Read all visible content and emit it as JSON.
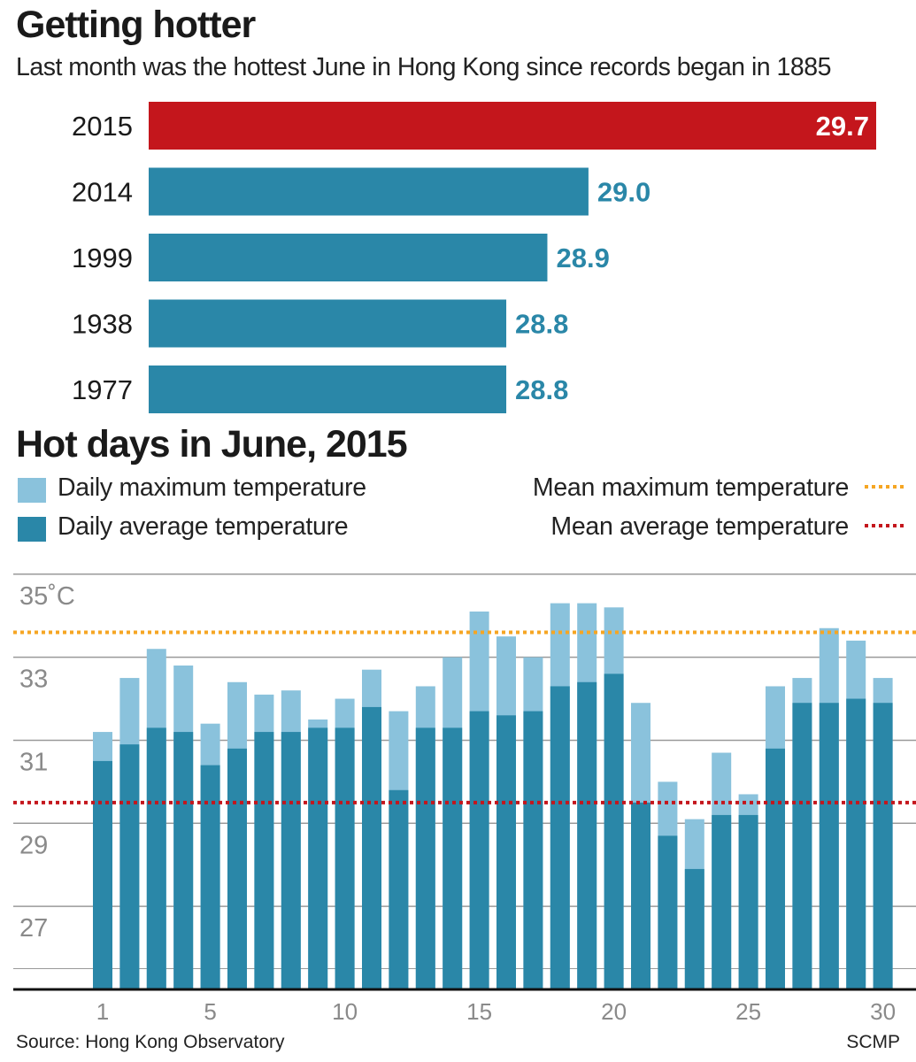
{
  "header": {
    "title": "Getting hotter",
    "subtitle": "Last month was the hottest June in Hong Kong since records began in 1885"
  },
  "section2": {
    "title": "Hot days in June, 2015"
  },
  "legend": {
    "daily_max": "Daily maximum temperature",
    "daily_avg": "Daily average temperature",
    "mean_max": "Mean maximum temperature",
    "mean_avg": "Mean average temperature"
  },
  "footer": {
    "source": "Source: Hong Kong Observatory",
    "credit": "SCMP"
  },
  "colors": {
    "highlight": "#c4161c",
    "bar": "#2a87a8",
    "label": "#2a87a8",
    "max_bar": "#8ac2dc",
    "mean_max_line": "#f6a623",
    "mean_avg_line": "#c4161c",
    "grid": "#9a9a9a"
  },
  "chart_data": [
    {
      "type": "bar",
      "orientation": "horizontal",
      "title": "Getting hotter",
      "subtitle": "Last month was the hottest June in Hong Kong since records began in 1885",
      "categories": [
        "2015",
        "2014",
        "1999",
        "1938",
        "1977"
      ],
      "values": [
        29.7,
        29.0,
        28.9,
        28.8,
        28.8
      ],
      "value_labels": [
        "29.7",
        "29.0",
        "28.9",
        "28.8",
        "28.8"
      ],
      "highlight_index": 0
    },
    {
      "type": "bar",
      "title": "Hot days in June, 2015",
      "x": [
        1,
        2,
        3,
        4,
        5,
        6,
        7,
        8,
        9,
        10,
        11,
        12,
        13,
        14,
        15,
        16,
        17,
        18,
        19,
        20,
        21,
        22,
        23,
        24,
        25,
        26,
        27,
        28,
        29,
        30
      ],
      "x_ticks": [
        "1",
        "5",
        "10",
        "15",
        "20",
        "25",
        "30"
      ],
      "x_tick_values": [
        1,
        5,
        10,
        15,
        20,
        25,
        30
      ],
      "y_ticks": [
        "35˚C",
        "33",
        "31",
        "29",
        "27"
      ],
      "y_tick_values": [
        35,
        33,
        31,
        29,
        27
      ],
      "ylim": [
        25.0,
        35.4
      ],
      "series": [
        {
          "name": "Daily maximum temperature",
          "values": [
            31.2,
            32.5,
            33.2,
            32.8,
            31.4,
            32.4,
            32.1,
            32.2,
            31.5,
            32.0,
            32.7,
            31.7,
            32.3,
            33.0,
            34.1,
            33.5,
            33.0,
            34.3,
            34.3,
            34.2,
            31.9,
            30.0,
            29.1,
            30.7,
            29.7,
            32.3,
            32.5,
            33.7,
            33.4,
            32.5
          ]
        },
        {
          "name": "Daily average temperature",
          "values": [
            30.5,
            30.9,
            31.3,
            31.2,
            30.4,
            30.8,
            31.2,
            31.2,
            31.3,
            31.3,
            31.8,
            29.8,
            31.3,
            31.3,
            31.7,
            31.6,
            31.7,
            32.3,
            32.4,
            32.6,
            29.5,
            28.7,
            27.9,
            29.2,
            29.2,
            30.8,
            31.9,
            31.9,
            32.0,
            31.9
          ]
        }
      ],
      "reference_lines": [
        {
          "name": "Mean maximum temperature",
          "value": 33.6
        },
        {
          "name": "Mean average temperature",
          "value": 29.5
        }
      ]
    }
  ]
}
